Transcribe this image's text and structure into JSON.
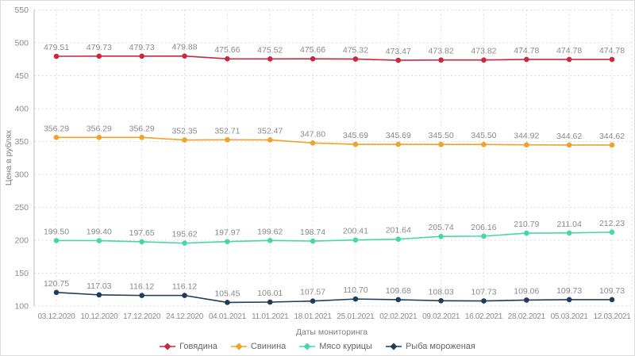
{
  "axes": {
    "y_title": "Цена в рублях",
    "x_title": "Даты мониторинга"
  },
  "chart_data": {
    "type": "line",
    "title": "",
    "xlabel": "Даты мониторинга",
    "ylabel": "Цена в рублях",
    "ylim": [
      100,
      550
    ],
    "ytick_step": 50,
    "yticks": [
      100,
      150,
      200,
      250,
      300,
      350,
      400,
      450,
      500,
      550
    ],
    "grid": true,
    "grid_style": "dashed",
    "legend_position": "bottom",
    "point_labels": true,
    "categories": [
      "03.12.2020",
      "10.12.2020",
      "17.12.2020",
      "24.12.2020",
      "04.01.2021",
      "11.01.2021",
      "18.01.2021",
      "25.01.2021",
      "02.02.2021",
      "09.02.2021",
      "16.02.2021",
      "28.02.2021",
      "05.03.2021",
      "12.03.2021"
    ],
    "series": [
      {
        "id": "beef",
        "name": "Говядина",
        "color": "#c82940",
        "values": [
          479.51,
          479.73,
          479.73,
          479.88,
          475.66,
          475.52,
          475.66,
          475.32,
          473.47,
          473.82,
          473.82,
          474.78,
          474.78,
          474.78
        ]
      },
      {
        "id": "pork",
        "name": "Свинина",
        "color": "#efa22d",
        "values": [
          356.29,
          356.29,
          356.29,
          352.35,
          352.71,
          352.47,
          347.8,
          345.69,
          345.69,
          345.5,
          345.5,
          344.92,
          344.62,
          344.62
        ]
      },
      {
        "id": "chicken",
        "name": "Мясо курицы",
        "color": "#46d7a9",
        "values": [
          199.5,
          199.4,
          197.65,
          195.62,
          197.97,
          199.62,
          198.74,
          200.41,
          201.64,
          205.74,
          206.16,
          210.79,
          211.04,
          212.23
        ]
      },
      {
        "id": "frozen-fish",
        "name": "Рыба мороженая",
        "color": "#1e3d58",
        "values": [
          120.75,
          117.03,
          116.12,
          116.12,
          105.45,
          106.01,
          107.57,
          110.7,
          109.68,
          108.03,
          107.73,
          109.06,
          109.73,
          109.73
        ]
      }
    ]
  },
  "colors": {
    "background": "#ffffff",
    "frame_border": "#dcdcdc",
    "grid": "#dcdcdc",
    "axis_line": "#c8c8c8",
    "tick_label": "#8b8b8b",
    "value_label": "#8a8a8a",
    "axis_title": "#7d7d7d",
    "legend_text": "#666666"
  }
}
